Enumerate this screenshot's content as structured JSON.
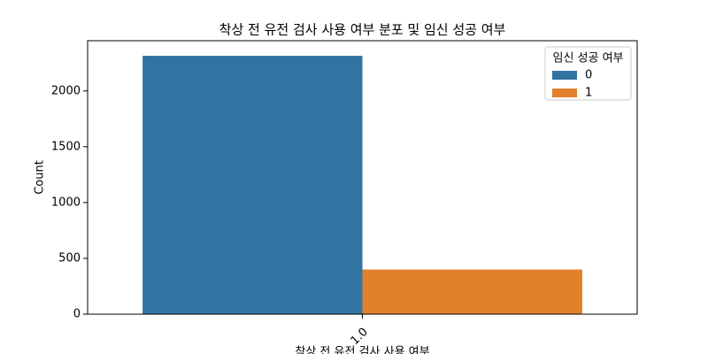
{
  "chart_data": {
    "type": "bar",
    "title": "착상 전 유전 검사 사용 여부 분포 및 임신 성공 여부",
    "xlabel": "착상 전 유전 검사 사용 여부",
    "ylabel": "Count",
    "categories": [
      "1.0"
    ],
    "series": [
      {
        "name": "0",
        "color": "#3274a1",
        "values": [
          2315
        ]
      },
      {
        "name": "1",
        "color": "#e1812c",
        "values": [
          400
        ]
      }
    ],
    "legend_title": "임신 성공 여부",
    "legend": "upper right",
    "ylim": [
      0,
      2450
    ],
    "yticks": [
      0,
      500,
      1000,
      1500,
      2000
    ]
  }
}
